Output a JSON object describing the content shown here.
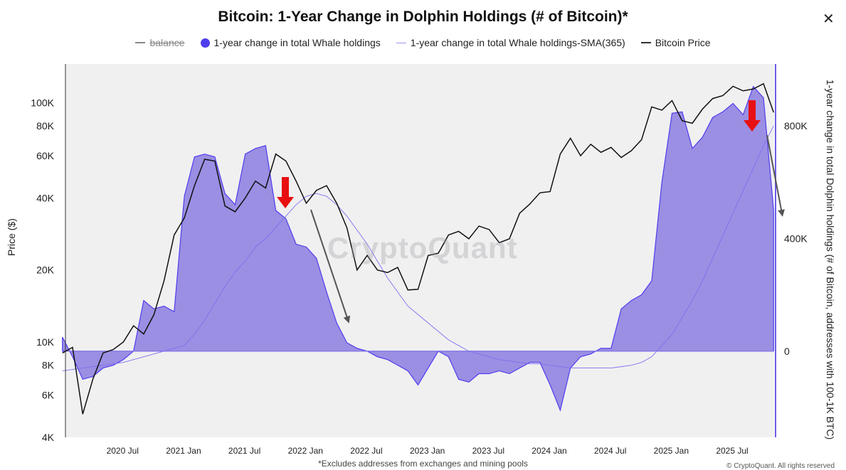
{
  "title": "Bitcoin: 1-Year Change in Dolphin Holdings (# of Bitcoin)*",
  "legend": [
    {
      "label": "balance",
      "hidden": true
    },
    {
      "label": "1-year change in total Whale holdings"
    },
    {
      "label": "1-year change in total Whale holdings-SMA(365)"
    },
    {
      "label": "Bitcoin Price"
    }
  ],
  "watermark": "CryptoQuant",
  "footnote": "*Excludes addresses from exchanges and mining pools",
  "copyright": "© CryptoQuant. All rights reserved",
  "colors": {
    "area_fill": "#9a8fe3",
    "area_stroke": "#4f3ded",
    "sma": "#7d70ee",
    "price": "#111111",
    "plot_bg": "#f0f0f0",
    "annotation_red": "#e81010",
    "annotation_gray": "#555555"
  },
  "chart_data": {
    "type": "line",
    "title": "Bitcoin: 1-Year Change in Dolphin Holdings (# of Bitcoin)*",
    "ylabel": "Price ($)",
    "y2label": "1-year change in total Dolphin holdings (# of Bitcoin, addresses with 100-1K BTC)",
    "y_scale": "log",
    "ylim": [
      4000,
      145000
    ],
    "y_ticks": [
      {
        "v": 4000,
        "l": "4K"
      },
      {
        "v": 6000,
        "l": "6K"
      },
      {
        "v": 8000,
        "l": "8K"
      },
      {
        "v": 10000,
        "l": "10K"
      },
      {
        "v": 20000,
        "l": "20K"
      },
      {
        "v": 40000,
        "l": "40K"
      },
      {
        "v": 60000,
        "l": "60K"
      },
      {
        "v": 80000,
        "l": "80K"
      },
      {
        "v": 100000,
        "l": "100K"
      }
    ],
    "y2lim": [
      -306000,
      1020000
    ],
    "y2_ticks": [
      {
        "v": 0,
        "l": "0"
      },
      {
        "v": 400000,
        "l": "400K"
      },
      {
        "v": 800000,
        "l": "800K"
      }
    ],
    "xlim": [
      "2020-01",
      "2025-11"
    ],
    "x_ticks": [
      {
        "v": "2020-07",
        "l": "2020 Jul"
      },
      {
        "v": "2021-01",
        "l": "2021 Jan"
      },
      {
        "v": "2021-07",
        "l": "2021 Jul"
      },
      {
        "v": "2022-01",
        "l": "2022 Jan"
      },
      {
        "v": "2022-07",
        "l": "2022 Jul"
      },
      {
        "v": "2023-01",
        "l": "2023 Jan"
      },
      {
        "v": "2023-07",
        "l": "2023 Jul"
      },
      {
        "v": "2024-01",
        "l": "2024 Jan"
      },
      {
        "v": "2024-07",
        "l": "2024 Jul"
      },
      {
        "v": "2025-01",
        "l": "2025 Jan"
      },
      {
        "v": "2025-07",
        "l": "2025 Jul"
      }
    ],
    "grid": false,
    "legend_position": "top",
    "x": [
      "2020-01",
      "2020-02",
      "2020-03",
      "2020-04",
      "2020-05",
      "2020-06",
      "2020-07",
      "2020-08",
      "2020-09",
      "2020-10",
      "2020-11",
      "2020-12",
      "2021-01",
      "2021-02",
      "2021-03",
      "2021-04",
      "2021-05",
      "2021-06",
      "2021-07",
      "2021-08",
      "2021-09",
      "2021-10",
      "2021-11",
      "2021-12",
      "2022-01",
      "2022-02",
      "2022-03",
      "2022-04",
      "2022-05",
      "2022-06",
      "2022-07",
      "2022-08",
      "2022-09",
      "2022-10",
      "2022-11",
      "2022-12",
      "2023-01",
      "2023-02",
      "2023-03",
      "2023-04",
      "2023-05",
      "2023-06",
      "2023-07",
      "2023-08",
      "2023-09",
      "2023-10",
      "2023-11",
      "2023-12",
      "2024-01",
      "2024-02",
      "2024-03",
      "2024-04",
      "2024-05",
      "2024-06",
      "2024-07",
      "2024-08",
      "2024-09",
      "2024-10",
      "2024-11",
      "2024-12",
      "2025-01",
      "2025-02",
      "2025-03",
      "2025-04",
      "2025-05",
      "2025-06",
      "2025-07",
      "2025-08",
      "2025-09",
      "2025-10",
      "2025-11"
    ],
    "series": [
      {
        "name": "1-year change in total Whale holdings",
        "axis": "right",
        "type": "area",
        "values": [
          50000,
          -20000,
          -100000,
          -90000,
          -60000,
          -50000,
          -30000,
          0,
          180000,
          150000,
          160000,
          140000,
          550000,
          690000,
          700000,
          690000,
          560000,
          520000,
          700000,
          720000,
          730000,
          500000,
          470000,
          380000,
          370000,
          330000,
          210000,
          100000,
          30000,
          10000,
          0,
          -20000,
          -30000,
          -50000,
          -70000,
          -120000,
          -60000,
          0,
          -20000,
          -100000,
          -110000,
          -80000,
          -80000,
          -70000,
          -80000,
          -60000,
          -40000,
          -40000,
          -120000,
          -210000,
          -60000,
          -20000,
          -10000,
          10000,
          10000,
          150000,
          180000,
          200000,
          250000,
          600000,
          845000,
          850000,
          720000,
          760000,
          830000,
          850000,
          880000,
          840000,
          940000,
          900000,
          500000
        ]
      },
      {
        "name": "1-year change in total Whale holdings-SMA(365)",
        "axis": "right",
        "type": "line",
        "values": [
          -70000,
          -65000,
          -60000,
          -55000,
          -50000,
          -45000,
          -40000,
          -30000,
          -20000,
          -10000,
          0,
          10000,
          20000,
          60000,
          110000,
          170000,
          230000,
          280000,
          320000,
          370000,
          400000,
          440000,
          480000,
          520000,
          550000,
          560000,
          550000,
          520000,
          480000,
          430000,
          380000,
          320000,
          260000,
          210000,
          160000,
          130000,
          100000,
          70000,
          40000,
          20000,
          0,
          -10000,
          -20000,
          -30000,
          -35000,
          -40000,
          -45000,
          -45000,
          -50000,
          -55000,
          -60000,
          -60000,
          -60000,
          -60000,
          -60000,
          -55000,
          -50000,
          -40000,
          -20000,
          20000,
          60000,
          120000,
          180000,
          250000,
          330000,
          410000,
          490000,
          570000,
          650000,
          730000,
          800000
        ]
      },
      {
        "name": "Bitcoin Price",
        "axis": "left",
        "type": "line",
        "values": [
          9000,
          9500,
          5000,
          7000,
          9000,
          9300,
          10000,
          11700,
          10800,
          13000,
          18000,
          28000,
          33000,
          45000,
          58000,
          57000,
          37000,
          35000,
          40000,
          47000,
          44000,
          61000,
          57000,
          47000,
          38000,
          43000,
          45000,
          38000,
          30000,
          20000,
          23000,
          20000,
          19500,
          20500,
          16500,
          16600,
          23000,
          23500,
          28000,
          29000,
          27000,
          30500,
          29500,
          26000,
          27000,
          34500,
          37700,
          42000,
          42500,
          61000,
          71000,
          60000,
          67000,
          62000,
          65000,
          59000,
          63000,
          70000,
          96000,
          93000,
          102000,
          84000,
          82000,
          94000,
          104000,
          107000,
          117000,
          112000,
          114000,
          120000,
          91000
        ]
      }
    ]
  }
}
